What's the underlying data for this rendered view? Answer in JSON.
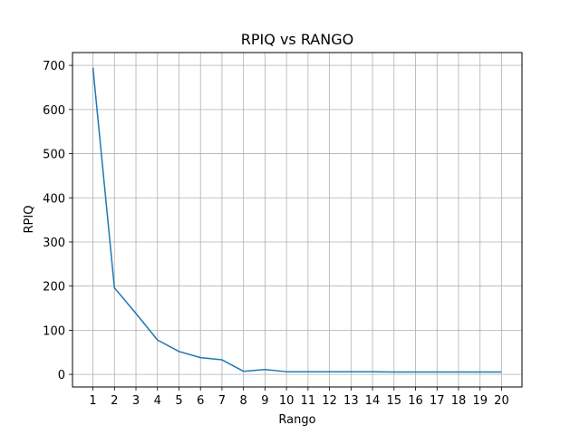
{
  "chart_data": {
    "type": "line",
    "title": "RPIQ vs RANGO",
    "xlabel": "Rango",
    "ylabel": "RPIQ",
    "x": [
      1,
      2,
      3,
      4,
      5,
      6,
      7,
      8,
      9,
      10,
      11,
      12,
      13,
      14,
      15,
      16,
      17,
      18,
      19,
      20
    ],
    "series": [
      {
        "values": [
          695,
          196,
          138,
          78,
          52,
          38,
          33,
          7,
          11,
          6,
          6,
          6,
          6,
          6,
          5.5,
          5.5,
          5.5,
          5.5,
          5.5,
          5.5
        ],
        "color": "#1f77b4"
      }
    ],
    "xlim": [
      0.05,
      20.95
    ],
    "ylim": [
      -28.5,
      729
    ],
    "yticks": [
      0,
      100,
      200,
      300,
      400,
      500,
      600,
      700
    ],
    "grid": true
  }
}
